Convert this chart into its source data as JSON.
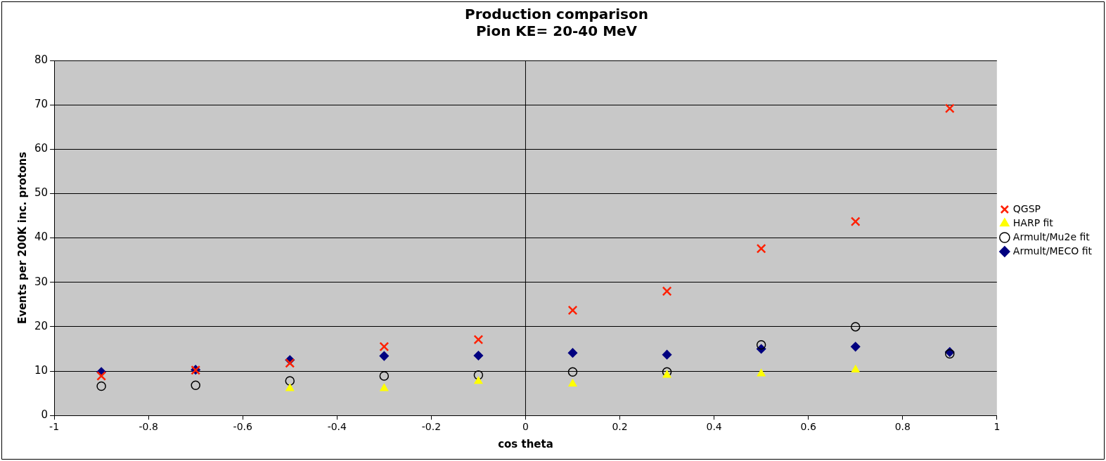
{
  "chart_data": {
    "type": "scatter",
    "title": "Production comparison\nPion KE= 20-40 MeV",
    "xlabel": "cos theta",
    "ylabel": "Events per 200K inc. protons",
    "x": [
      -0.9,
      -0.7,
      -0.5,
      -0.3,
      -0.1,
      0.1,
      0.3,
      0.5,
      0.7,
      0.9
    ],
    "series": [
      {
        "name": "Armult/MECO fit",
        "color": "#000080",
        "marker": "diamond",
        "values": [
          9.8,
          10.3,
          12.5,
          13.4,
          13.5,
          14.1,
          13.7,
          15.0,
          15.5,
          14.3
        ]
      },
      {
        "name": "Armult/Mu2e fit",
        "color": "#000000",
        "marker": "circle",
        "values": [
          6.6,
          6.8,
          7.8,
          8.9,
          9.1,
          9.8,
          9.8,
          15.9,
          20.0,
          13.9
        ]
      },
      {
        "name": "HARP fit",
        "color": "#ffff00",
        "marker": "triangle",
        "values": [
          null,
          null,
          6.1,
          6.1,
          7.7,
          7.1,
          9.1,
          9.4,
          10.3,
          null
        ]
      },
      {
        "name": "QGSP",
        "color": "#ff2000",
        "marker": "cross",
        "values": [
          8.9,
          10.2,
          11.8,
          15.5,
          17.1,
          23.7,
          28.0,
          37.6,
          43.7,
          69.2
        ]
      }
    ],
    "xlim": [
      -1,
      1
    ],
    "xticks": [
      -1,
      -0.8,
      -0.6,
      -0.4,
      -0.2,
      0,
      0.2,
      0.4,
      0.6,
      0.8,
      1
    ],
    "ylim": [
      0,
      80
    ],
    "yticks": [
      0,
      10,
      20,
      30,
      40,
      50,
      60,
      70,
      80
    ],
    "ref_lines": [
      {
        "axis": "x",
        "value": 0,
        "color": "#000000"
      }
    ],
    "grid": "y",
    "legend": "right"
  }
}
